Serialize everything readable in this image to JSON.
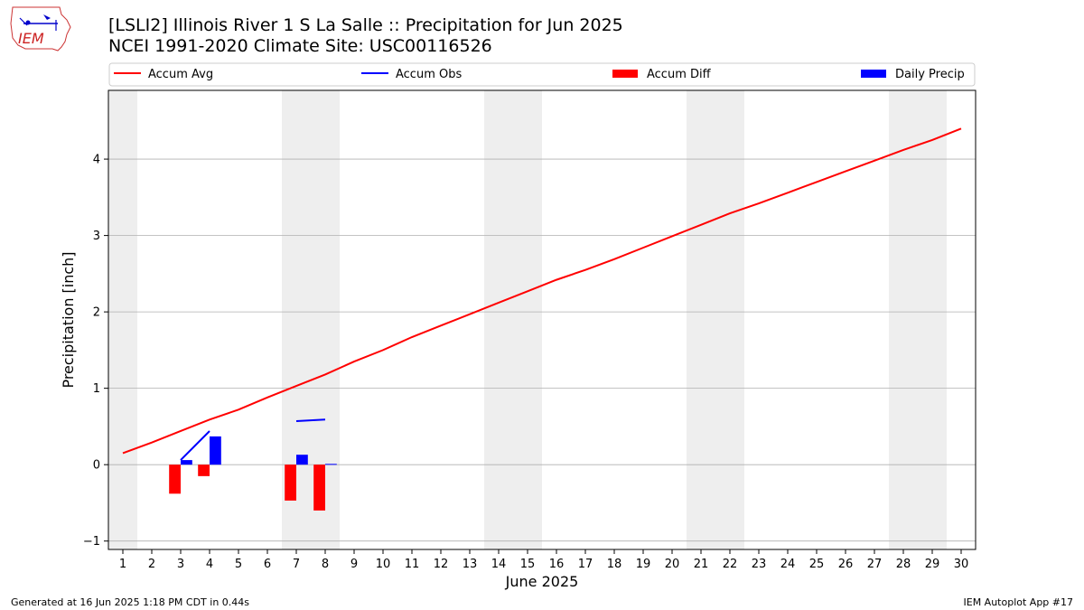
{
  "header": {
    "title_line1": "[LSLI2] Illinois River 1 S La Salle :: Precipitation for Jun 2025",
    "title_line2": "NCEI 1991-2020 Climate Site: USC00116526",
    "logo_text": "IEM"
  },
  "footer": {
    "left": "Generated at 16 Jun 2025 1:18 PM CDT in 0.44s",
    "right": "IEM Autoplot App #17"
  },
  "colors": {
    "accum_avg": "#ff0000",
    "accum_obs": "#0000ff",
    "accum_diff": "#ff0000",
    "daily_precip": "#0000ff",
    "weekend_band": "#eeeeee",
    "grid": "#b0b0b0"
  },
  "chart_data": {
    "type": "bar",
    "xlabel": "June 2025",
    "ylabel": "Precipitation [inch]",
    "xlim": [
      0.5,
      30.5
    ],
    "ylim": [
      -1.11,
      4.9
    ],
    "x_ticks": [
      1,
      2,
      3,
      4,
      5,
      6,
      7,
      8,
      9,
      10,
      11,
      12,
      13,
      14,
      15,
      16,
      17,
      18,
      19,
      20,
      21,
      22,
      23,
      24,
      25,
      26,
      27,
      28,
      29,
      30
    ],
    "y_ticks": [
      -1,
      0,
      1,
      2,
      3,
      4
    ],
    "grid": "horizontal",
    "legend": {
      "placement": "top",
      "entries": [
        {
          "label": "Accum Avg",
          "kind": "line",
          "color": "#ff0000"
        },
        {
          "label": "Accum Obs",
          "kind": "line",
          "color": "#0000ff"
        },
        {
          "label": "Accum Diff",
          "kind": "bar",
          "color": "#ff0000"
        },
        {
          "label": "Daily Precip",
          "kind": "bar",
          "color": "#0000ff"
        }
      ]
    },
    "weekend_bands": [
      [
        0.5,
        1.5
      ],
      [
        6.5,
        8.5
      ],
      [
        13.5,
        15.5
      ],
      [
        20.5,
        22.5
      ],
      [
        27.5,
        29.5
      ]
    ],
    "accum_avg": {
      "x": [
        1,
        2,
        3,
        4,
        5,
        6,
        7,
        8,
        9,
        10,
        11,
        12,
        13,
        14,
        15,
        16,
        17,
        18,
        19,
        20,
        21,
        22,
        23,
        24,
        25,
        26,
        27,
        28,
        29,
        30
      ],
      "values": [
        0.15,
        0.29,
        0.44,
        0.59,
        0.72,
        0.88,
        1.03,
        1.18,
        1.35,
        1.5,
        1.67,
        1.82,
        1.97,
        2.12,
        2.27,
        2.42,
        2.55,
        2.69,
        2.84,
        2.99,
        3.14,
        3.29,
        3.42,
        3.56,
        3.7,
        3.84,
        3.98,
        4.12,
        4.25,
        4.4
      ]
    },
    "accum_obs": [
      {
        "x": [
          3,
          4
        ],
        "values": [
          0.06,
          0.44
        ]
      },
      {
        "x": [
          7,
          8
        ],
        "values": [
          0.57,
          0.59
        ]
      }
    ],
    "accum_diff": {
      "x": [
        1,
        2,
        3,
        4,
        5,
        6,
        7,
        8
      ],
      "values": [
        0,
        0,
        -0.38,
        -0.15,
        0,
        0,
        -0.47,
        -0.6
      ]
    },
    "daily_precip": {
      "x": [
        1,
        2,
        3,
        4,
        5,
        6,
        7,
        8
      ],
      "values": [
        0,
        0,
        0.06,
        0.37,
        0,
        0,
        0.13,
        0.01
      ]
    }
  }
}
